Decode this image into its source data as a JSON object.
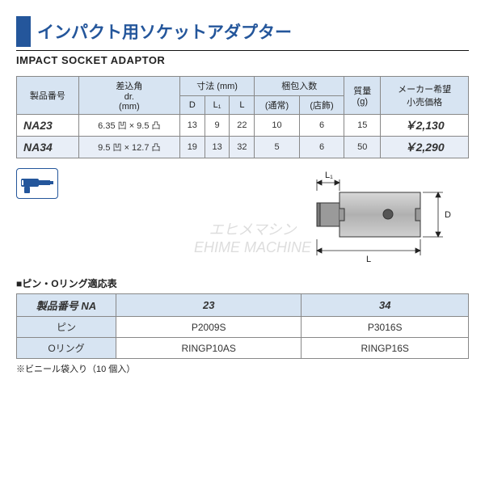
{
  "header": {
    "title_jp": "インパクト用ソケットアダプター",
    "title_en": "IMPACT SOCKET ADAPTOR",
    "bar_color": "#24569b"
  },
  "spec_table": {
    "headers": {
      "model_no": "製品番号",
      "drive": "差込角\ndr.\n(mm)",
      "dim_group": "寸法 (mm)",
      "dim_D": "D",
      "dim_L1": "L₁",
      "dim_L": "L",
      "pack_group": "梱包入数",
      "pack_normal": "(通常)",
      "pack_shop": "(店飾)",
      "mass": "質量\n(g)",
      "price": "メーカー希望\n小売価格"
    },
    "rows": [
      {
        "model": "NA23",
        "drive": "6.35 凹 × 9.5 凸",
        "D": "13",
        "L1": "9",
        "L": "22",
        "pack_n": "10",
        "pack_s": "6",
        "mass": "15",
        "price": "￥2,130",
        "alt": false
      },
      {
        "model": "NA34",
        "drive": "9.5 凹 × 12.7 凸",
        "D": "19",
        "L1": "13",
        "L": "32",
        "pack_n": "5",
        "pack_s": "6",
        "mass": "50",
        "price": "￥2,290",
        "alt": true
      }
    ]
  },
  "diagram": {
    "labels": {
      "L1": "L₁",
      "L": "L",
      "D": "D"
    },
    "body_color": "#b8b8b8",
    "outline_color": "#333333",
    "dim_line_color": "#222222"
  },
  "compat": {
    "title": "■ピン・Oリング適応表",
    "headers": {
      "model": "製品番号 NA",
      "c1": "23",
      "c2": "34"
    },
    "rows": [
      {
        "label": "ピン",
        "v1": "P2009S",
        "v2": "P3016S"
      },
      {
        "label": "Oリング",
        "v1": "RINGP10AS",
        "v2": "RINGP16S"
      }
    ]
  },
  "note": "※ビニール袋入り（10 個入）",
  "icon": {
    "color": "#24569b"
  },
  "watermark": {
    "line1": "エヒメマシン",
    "line2": "EHIME MACHINE"
  }
}
